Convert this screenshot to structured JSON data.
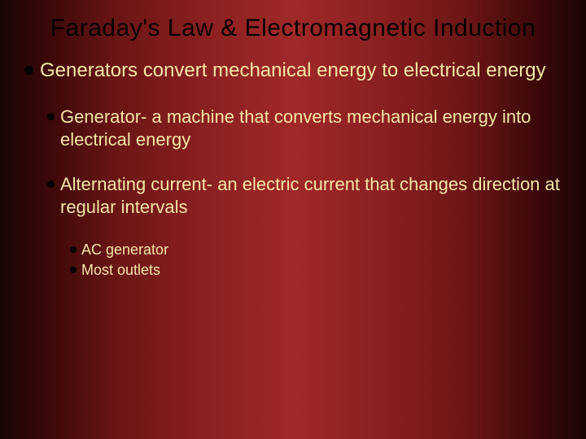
{
  "colors": {
    "title": "#000000",
    "body": "#f5e6a8",
    "bullet": "#000000"
  },
  "title": "Faraday's Law & Electromagnetic Induction",
  "bullets": {
    "l1": "Generators convert mechanical energy to electrical energy",
    "l2a": "Generator- a machine that converts mechanical energy into electrical energy",
    "l2b": "Alternating current- an electric current that changes direction at regular intervals",
    "l3a": "AC generator",
    "l3b": "Most outlets"
  }
}
